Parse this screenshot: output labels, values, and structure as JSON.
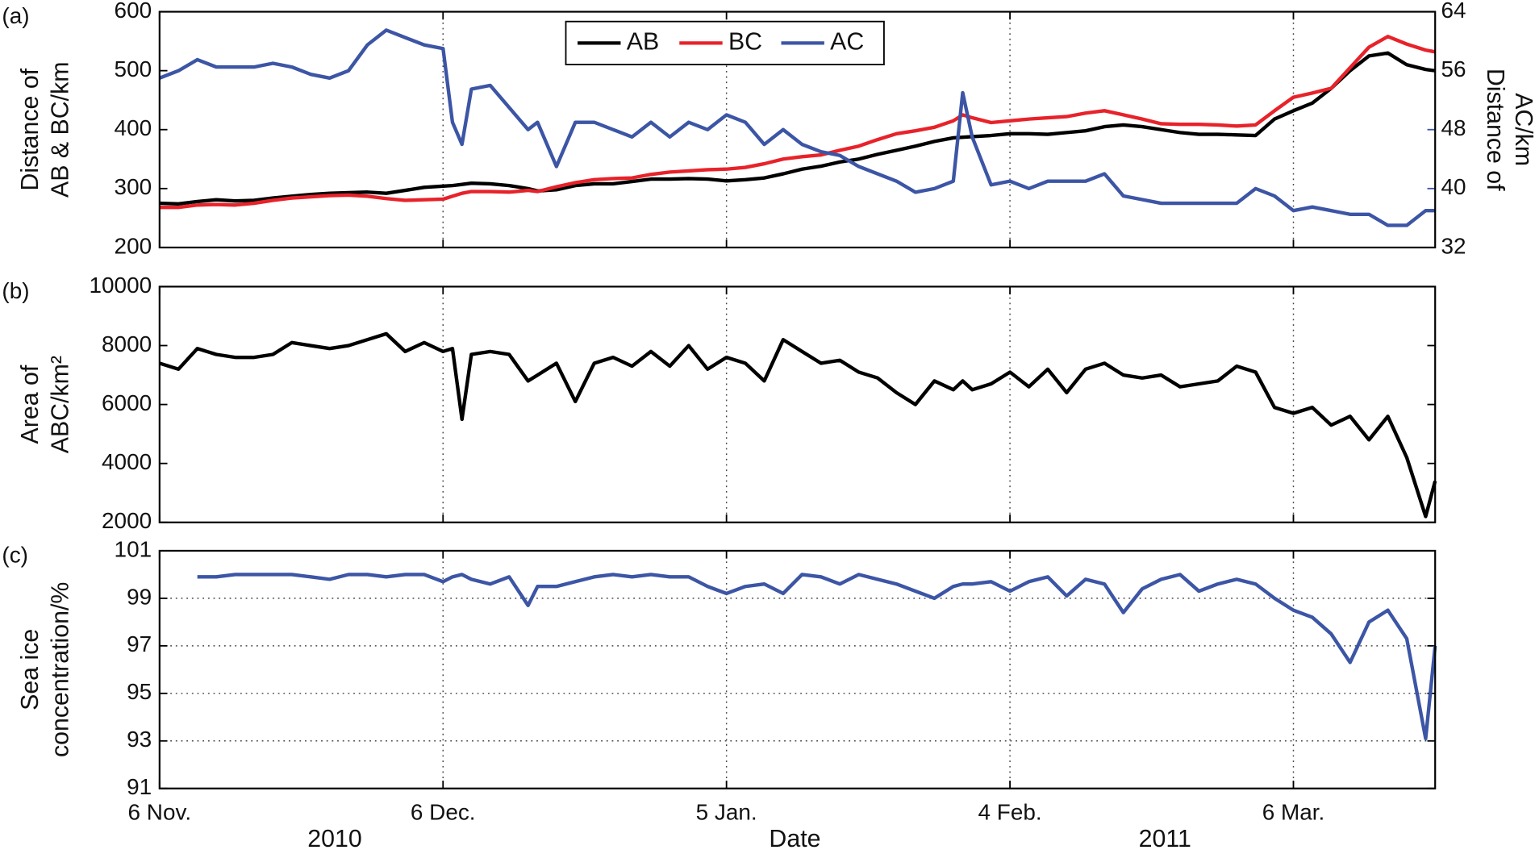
{
  "chart_data": [
    {
      "type": "line",
      "panel_label": "(a)",
      "ylabel": [
        "Distance of",
        "AB & BC/km"
      ],
      "y2label": [
        "Distance of",
        "AC/km"
      ],
      "legend": "top",
      "x": [
        0,
        2,
        4,
        6,
        8,
        10,
        12,
        14,
        16,
        18,
        20,
        22,
        24,
        26,
        28,
        30,
        31,
        32,
        33,
        35,
        37,
        39,
        40,
        42,
        44,
        46,
        48,
        50,
        52,
        54,
        56,
        58,
        60,
        62,
        64,
        66,
        68,
        70,
        72,
        74,
        76,
        78,
        80,
        82,
        84,
        85,
        86,
        88,
        90,
        92,
        94,
        96,
        98,
        100,
        102,
        104,
        106,
        108,
        110,
        112,
        114,
        116,
        118,
        120,
        122,
        124,
        126,
        128,
        130,
        132,
        134,
        135
      ],
      "xlim": [
        0,
        135
      ],
      "xticks": [
        0,
        30,
        60,
        90,
        120
      ],
      "grid": "x",
      "ylim": [
        200,
        600
      ],
      "yticks": [
        200,
        300,
        400,
        500,
        600
      ],
      "y2lim": [
        32,
        64
      ],
      "y2ticks": [
        32,
        40,
        48,
        56,
        64
      ],
      "y2color": "#3c55a5",
      "series": [
        {
          "name": "AB",
          "color": "#000000",
          "values": [
            275,
            274,
            278,
            281,
            279,
            280,
            284,
            287,
            290,
            292,
            293,
            294,
            292,
            297,
            302,
            304,
            305,
            307,
            309,
            308,
            305,
            300,
            296,
            298,
            305,
            308,
            308,
            312,
            316,
            316,
            317,
            316,
            313,
            315,
            318,
            325,
            333,
            338,
            345,
            350,
            358,
            365,
            372,
            380,
            386,
            387,
            388,
            390,
            393,
            393,
            392,
            395,
            398,
            405,
            408,
            405,
            400,
            395,
            392,
            392,
            391,
            390,
            418,
            432,
            445,
            470,
            500,
            525,
            530,
            510,
            502,
            500
          ]
        },
        {
          "name": "BC",
          "color": "#e8222a",
          "values": [
            268,
            268,
            272,
            273,
            272,
            275,
            280,
            284,
            286,
            288,
            289,
            287,
            283,
            280,
            281,
            282,
            287,
            292,
            295,
            295,
            294,
            297,
            295,
            303,
            310,
            315,
            317,
            318,
            324,
            328,
            330,
            332,
            333,
            336,
            342,
            350,
            354,
            357,
            365,
            372,
            383,
            393,
            398,
            404,
            415,
            425,
            420,
            412,
            415,
            418,
            420,
            422,
            428,
            432,
            425,
            418,
            410,
            409,
            409,
            408,
            406,
            408,
            432,
            455,
            462,
            470,
            505,
            540,
            558,
            545,
            535,
            532
          ]
        },
        {
          "name": "AC",
          "color": "#3c55a5",
          "axis": "y2",
          "values": [
            55,
            56,
            57.5,
            56.5,
            56.5,
            56.5,
            57,
            56.5,
            55.5,
            55,
            56,
            59.5,
            61.5,
            60.5,
            59.5,
            59,
            49,
            46,
            53.5,
            54,
            51,
            48,
            49,
            43,
            49,
            49,
            48,
            47,
            49,
            47,
            49,
            48,
            50,
            49,
            46,
            48,
            46,
            45,
            44.5,
            43,
            42,
            41,
            39.5,
            40,
            41,
            53,
            47,
            40.5,
            41,
            40,
            41,
            41,
            41,
            42,
            39,
            38.5,
            38,
            38,
            38,
            38,
            38,
            40,
            39,
            37,
            37.5,
            37,
            36.5,
            36.5,
            35,
            35,
            37,
            37
          ]
        }
      ]
    },
    {
      "type": "line",
      "panel_label": "(b)",
      "ylabel": [
        "Area of",
        "ABC/km²"
      ],
      "x": [
        0,
        2,
        4,
        6,
        8,
        10,
        12,
        14,
        16,
        18,
        20,
        22,
        24,
        26,
        28,
        30,
        31,
        32,
        33,
        35,
        37,
        39,
        40,
        42,
        44,
        46,
        48,
        50,
        52,
        54,
        56,
        58,
        60,
        62,
        64,
        66,
        68,
        70,
        72,
        74,
        76,
        78,
        80,
        82,
        84,
        85,
        86,
        88,
        90,
        92,
        94,
        96,
        98,
        100,
        102,
        104,
        106,
        108,
        110,
        112,
        114,
        116,
        118,
        120,
        122,
        124,
        126,
        128,
        130,
        132,
        134,
        135
      ],
      "xlim": [
        0,
        135
      ],
      "xticks": [
        0,
        30,
        60,
        90,
        120
      ],
      "grid": "x",
      "ylim": [
        2000,
        10000
      ],
      "yticks": [
        2000,
        4000,
        6000,
        8000,
        10000
      ],
      "series": [
        {
          "color": "#000000",
          "values": [
            7400,
            7200,
            7900,
            7700,
            7600,
            7600,
            7700,
            8100,
            8000,
            7900,
            8000,
            8200,
            8400,
            7800,
            8100,
            7800,
            7900,
            5500,
            7700,
            7800,
            7700,
            6800,
            7000,
            7400,
            6100,
            7400,
            7600,
            7300,
            7800,
            7300,
            8000,
            7200,
            7600,
            7400,
            6800,
            8200,
            7800,
            7400,
            7500,
            7100,
            6900,
            6400,
            6000,
            6800,
            6500,
            6800,
            6500,
            6700,
            7100,
            6600,
            7200,
            6400,
            7200,
            7400,
            7000,
            6900,
            7000,
            6600,
            6700,
            6800,
            7300,
            7100,
            5900,
            5700,
            5900,
            5300,
            5600,
            4800,
            5600,
            4200,
            2200,
            3400
          ]
        }
      ]
    },
    {
      "type": "line",
      "panel_label": "(c)",
      "ylabel": [
        "Sea ice",
        "concentration/%"
      ],
      "xlabel": "Date",
      "year_labels": [
        "2010",
        "2011"
      ],
      "x": [
        0,
        2,
        4,
        6,
        8,
        10,
        12,
        14,
        16,
        18,
        20,
        22,
        24,
        26,
        28,
        30,
        31,
        32,
        33,
        35,
        37,
        39,
        40,
        42,
        44,
        46,
        48,
        50,
        52,
        54,
        56,
        58,
        60,
        62,
        64,
        66,
        68,
        70,
        72,
        74,
        76,
        78,
        80,
        82,
        84,
        85,
        86,
        88,
        90,
        92,
        94,
        96,
        98,
        100,
        102,
        104,
        106,
        108,
        110,
        112,
        114,
        116,
        118,
        120,
        122,
        124,
        126,
        128,
        130,
        132,
        134,
        135
      ],
      "xlim": [
        0,
        135
      ],
      "xticks": [
        {
          "value": 0,
          "label": "6 Nov."
        },
        {
          "value": 30,
          "label": "6 Dec."
        },
        {
          "value": 60,
          "label": "5 Jan."
        },
        {
          "value": 90,
          "label": "4 Feb."
        },
        {
          "value": 120,
          "label": "6 Mar."
        }
      ],
      "grid": "both",
      "ylim": [
        91,
        101
      ],
      "yticks": [
        91,
        93,
        95,
        97,
        99,
        101
      ],
      "series": [
        {
          "color": "#3c55a5",
          "values": [
            null,
            null,
            99.9,
            99.9,
            100,
            100,
            100,
            100,
            99.9,
            99.8,
            100,
            100,
            99.9,
            100,
            100,
            99.7,
            99.9,
            100,
            99.8,
            99.6,
            99.9,
            98.7,
            99.5,
            99.5,
            99.7,
            99.9,
            100,
            99.9,
            100,
            99.9,
            99.9,
            99.5,
            99.2,
            99.5,
            99.6,
            99.2,
            100,
            99.9,
            99.6,
            100,
            99.8,
            99.6,
            99.3,
            99,
            99.5,
            99.6,
            99.6,
            99.7,
            99.3,
            99.7,
            99.9,
            99.1,
            99.8,
            99.6,
            98.4,
            99.4,
            99.8,
            100,
            99.3,
            99.6,
            99.8,
            99.6,
            99,
            98.5,
            98.2,
            97.5,
            96.3,
            98,
            98.5,
            97.3,
            93.1,
            97
          ]
        }
      ]
    }
  ]
}
